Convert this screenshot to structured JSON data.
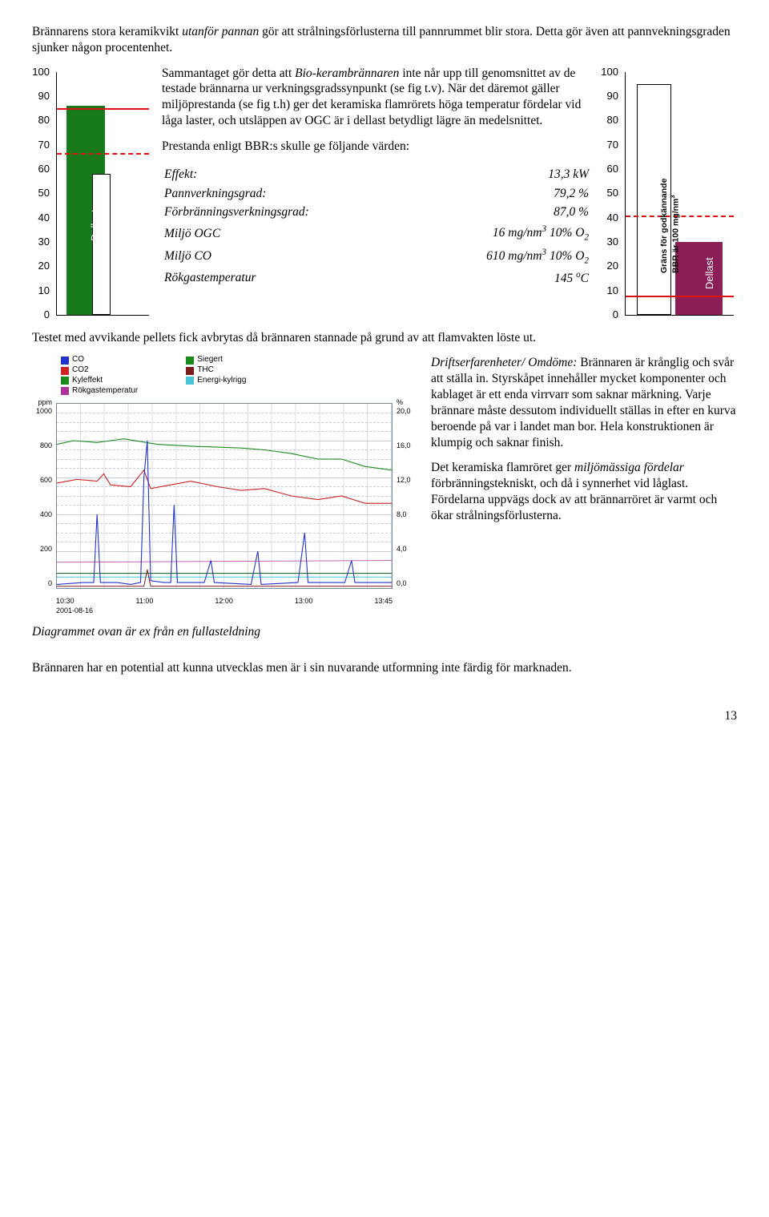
{
  "intro_text": "Brännarens stora keramikvikt utanför pannan gör att strålningsförlusterna till pannrummet blir stora. Detta gör även att pannvekningsgraden sjunker någon procentenhet.",
  "intro_em": "utanför pannan",
  "left_chart": {
    "type": "bar",
    "ylim": [
      0,
      100
    ],
    "ticks": [
      100,
      90,
      80,
      70,
      60,
      50,
      40,
      30,
      20,
      10,
      0
    ],
    "bars": [
      {
        "value": 86,
        "color": "#167a1b",
        "x_pct": 10,
        "w_pct": 42
      },
      {
        "value": 58,
        "color": "#ffffff",
        "x_pct": 38,
        "w_pct": 20,
        "border": "#000"
      }
    ],
    "red_solid_y": 84.5,
    "red_dash_y": 66,
    "label": "Dellast",
    "tick_font": 13
  },
  "mid_para": "Sammantaget gör detta att Bio-kerambrännaren inte når upp till genomsnittet av de testade brännarna ur verkningsgradssynpunkt (se fig t.v). När det däremot gäller miljöprestanda (se fig t.h) ger det keramiska flamrörets höga temperatur fördelar vid låga laster, och utsläppen av OGC är i dellast betydligt lägre än medelsnittet.",
  "mid_em": "Bio-kerambrännaren",
  "mid_para2": "Prestanda enligt BBR:s skulle ge följande värden:",
  "specs": [
    {
      "label": "Effekt:",
      "value": "13,3 kW"
    },
    {
      "label": "Pannverkningsgrad:",
      "value": "79,2 %"
    },
    {
      "label": "Förbränningsverkningsgrad:",
      "value": "87,0 %"
    },
    {
      "label": "Miljö OGC",
      "value": "16 mg/nm³ 10% O₂",
      "sup": "3",
      "sub": "2",
      "raw_l": "Miljö OGC",
      "raw_r": "16 mg/nm",
      "tail": " 10% O"
    },
    {
      "label": "Miljö CO",
      "value": "610 mg/nm³ 10% O₂",
      "sup": "3",
      "sub": "2",
      "raw_l": "Miljö CO",
      "raw_r": "610 mg/nm",
      "tail": " 10% O"
    },
    {
      "label": "Rökgastemperatur",
      "value": "145 °C",
      "deg": "o",
      "raw_r": "145 ",
      "tail2": "C"
    }
  ],
  "right_chart": {
    "type": "bar",
    "ylim": [
      0,
      100
    ],
    "ticks": [
      100,
      90,
      80,
      70,
      60,
      50,
      40,
      30,
      20,
      10,
      0
    ],
    "bars": [
      {
        "value": 95,
        "color": "#ffffff",
        "x_pct": 10,
        "w_pct": 32,
        "border": "#000"
      },
      {
        "value": 30,
        "color": "#8a1e55",
        "x_pct": 46,
        "w_pct": 44
      }
    ],
    "red_solid_y": 7,
    "red_dash_y": 40,
    "label": "Dellast",
    "sidecap_l1": "Gräns för godkännande",
    "sidecap_l2": "BBR är 100 mg/nm",
    "sidecap_sup": "3",
    "tick_font": 13
  },
  "after_charts": "Testet med avvikande pellets fick avbrytas då brännaren stannade på grund av att flamvakten löste ut.",
  "linechart": {
    "legend_left": [
      {
        "label": "CO",
        "color": "#2233cc"
      },
      {
        "label": "CO2",
        "color": "#cc2222"
      },
      {
        "label": "Kyleffekt",
        "color": "#1a8a1a"
      },
      {
        "label": "Rökgastemperatur",
        "color": "#b030a0"
      }
    ],
    "legend_right": [
      {
        "label": "Siegert",
        "color": "#1a8a1a"
      },
      {
        "label": "THC",
        "color": "#7a1a1a"
      },
      {
        "label": "Energi-kylrigg",
        "color": "#49c2d6"
      }
    ],
    "y_left_unit": "ppm",
    "y_left_ticks": [
      "1000",
      "800",
      "600",
      "400",
      "200",
      "0"
    ],
    "y_right_unit": "%",
    "y_right_ticks": [
      "20,0",
      "16,0",
      "12,0",
      "8,0",
      "4,0",
      "0,0"
    ],
    "x_ticks": [
      "10:30",
      "11:00",
      "12:00",
      "13:00",
      "13:45"
    ],
    "date": "2001-08-16",
    "caption": "Diagrammet ovan är ex från en fullasteldning",
    "grid_color": "#d8dde4",
    "dash_color": "#c7cdd6"
  },
  "right_text_1a": "Driftserfarenheter/ Omdöme:",
  "right_text_1b": " Brännaren är krånglig och svår att ställa in. Styrskåpet innehåller mycket komponenter och kablaget är ett enda virrvarr som saknar märkning. Varje brännare måste dessutom individuellt ställas in efter en kurva beroende på var i landet man bor. Hela konstruktionen är klumpig och saknar finish.",
  "right_text_2a": "Det keramiska flamröret ger ",
  "right_text_2b": "miljömässiga fördelar",
  "right_text_2c": " förbränningstekniskt, och då i synnerhet vid låglast. Fördelarna uppvägs dock av att brännarröret är varmt och ökar strålningsförlusterna.",
  "bottom_text": "Brännaren har en potential att kunna utvecklas men är i sin nuvarande utformning inte färdig för marknaden.",
  "page_number": "13"
}
